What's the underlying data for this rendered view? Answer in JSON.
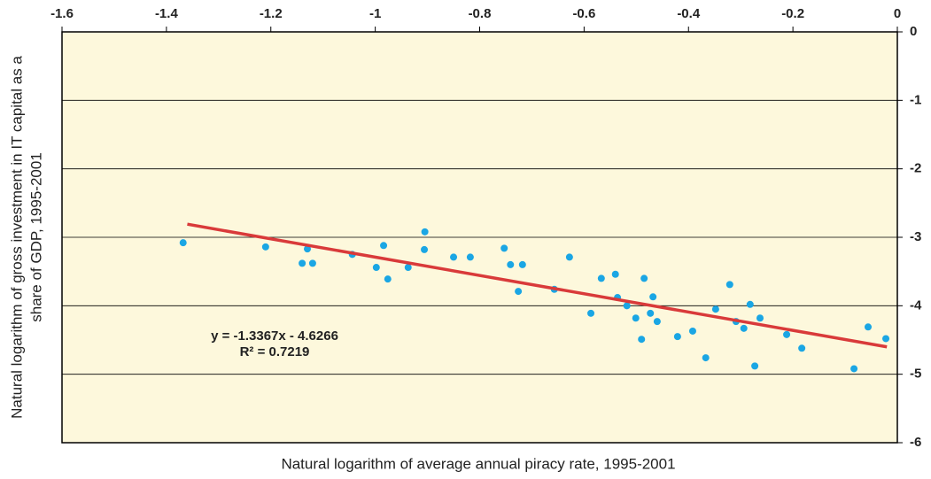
{
  "chart_data": {
    "type": "scatter",
    "xlabel": "Natural logarithm of average annual piracy rate, 1995-2001",
    "ylabel": [
      "Natural logarithm of gross investment in IT capital as a",
      "share of GDP, 1995-2001"
    ],
    "annotations": [
      "y = -1.3367x - 4.6266",
      "R² = 0.7219"
    ],
    "xlim": [
      -1.6,
      0
    ],
    "xticks": [
      -1.6,
      -1.4,
      -1.2,
      -1,
      -0.8,
      -0.6,
      -0.4,
      -0.2,
      0
    ],
    "ylim": [
      -6,
      0
    ],
    "yticks": [
      0,
      -1,
      -2,
      -3,
      -4,
      -5,
      -6
    ],
    "grid": true,
    "background": "#fdf8dc",
    "series": [
      {
        "color": "#1aa6e4",
        "x": [
          -1.368,
          -1.21,
          -1.14,
          -1.13,
          -1.12,
          -1.044,
          -0.998,
          -0.984,
          -0.976,
          -0.937,
          -0.906,
          -0.905,
          -0.85,
          -0.818,
          -0.753,
          -0.741,
          -0.726,
          -0.718,
          -0.657,
          -0.628,
          -0.587,
          -0.567,
          -0.54,
          -0.536,
          -0.518,
          -0.501,
          -0.49,
          -0.485,
          -0.473,
          -0.468,
          -0.46,
          -0.421,
          -0.392,
          -0.367,
          -0.348,
          -0.321,
          -0.309,
          -0.294,
          -0.282,
          -0.273,
          -0.263,
          -0.212,
          -0.183,
          -0.083,
          -0.056,
          -0.022
        ],
        "values": [
          -3.08,
          -3.14,
          -3.38,
          -3.17,
          -3.38,
          -3.25,
          -3.44,
          -3.12,
          -3.61,
          -3.44,
          -3.18,
          -2.92,
          -3.29,
          -3.29,
          -3.16,
          -3.4,
          -3.79,
          -3.4,
          -3.76,
          -3.29,
          -4.11,
          -3.6,
          -3.54,
          -3.88,
          -4,
          -4.18,
          -4.49,
          -3.6,
          -4.11,
          -3.87,
          -4.23,
          -4.45,
          -4.37,
          -4.76,
          -4.05,
          -3.69,
          -4.23,
          -4.33,
          -3.98,
          -4.88,
          -4.18,
          -4.42,
          -4.62,
          -4.92,
          -4.31,
          -4.48
        ]
      },
      {
        "color": "#d93a3a",
        "line": true,
        "x": [
          -1.36,
          -0.02
        ],
        "values": [
          -2.8087,
          -4.6
        ]
      }
    ]
  }
}
